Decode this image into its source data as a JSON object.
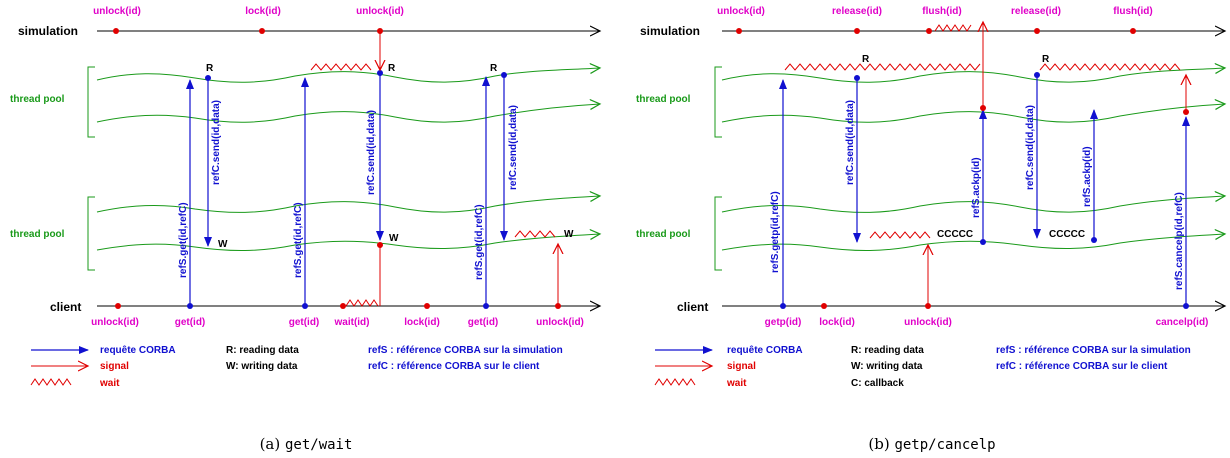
{
  "colors": {
    "magenta": "#e000c8",
    "green": "#1a9a1a",
    "blue": "#1010d0",
    "red": "#e00000",
    "black": "#000000"
  },
  "a": {
    "lanes": {
      "simulation": "simulation",
      "pool_top": "thread pool",
      "pool_bottom": "thread pool",
      "client": "client"
    },
    "sim_events": [
      "unlock(id)",
      "lock(id)",
      "unlock(id)"
    ],
    "client_events": [
      "unlock(id)",
      "get(id)",
      "get(id)",
      "wait(id)",
      "lock(id)",
      "get(id)",
      "unlock(id)"
    ],
    "calls": [
      "refS.get(id,refC)",
      "refC.send(id,data)",
      "refS.get(id,refC)",
      "refC.send(id,data)",
      "refS.get(id,refC)",
      "refC.send(id,data)"
    ],
    "markers": {
      "R": "R",
      "W": "W"
    },
    "legend": {
      "corba": "requête CORBA",
      "signal": "signal",
      "wait": "wait",
      "r": "R: reading data",
      "w": "W: writing data",
      "refs": "refS : référence CORBA sur la simulation",
      "refc": "refC : référence CORBA sur le client"
    },
    "caption": {
      "prefix": "(a) ",
      "code": "get/wait"
    }
  },
  "b": {
    "lanes": {
      "simulation": "simulation",
      "pool_top": "thread pool",
      "pool_bottom": "thread pool",
      "client": "client"
    },
    "sim_events": [
      "unlock(id)",
      "release(id)",
      "flush(id)",
      "release(id)",
      "flush(id)"
    ],
    "client_events": [
      "getp(id)",
      "lock(id)",
      "unlock(id)",
      "cancelp(id)"
    ],
    "calls": [
      "refS.getp(id,refC)",
      "refC.send(id,data)",
      "refS.ackp(id)",
      "refC.send(id,data)",
      "refS.ackp(id)",
      "refS.cancelp(id,refC)"
    ],
    "markers": {
      "R": "R",
      "C": "CCCCC"
    },
    "legend": {
      "corba": "requête CORBA",
      "signal": "signal",
      "wait": "wait",
      "r": "R: reading data",
      "w": "W: writing data",
      "c": "C: callback",
      "refs": "refS : référence CORBA sur la simulation",
      "refc": "refC : référence CORBA sur le client"
    },
    "caption": {
      "prefix": "(b) ",
      "code": "getp/cancelp"
    }
  }
}
